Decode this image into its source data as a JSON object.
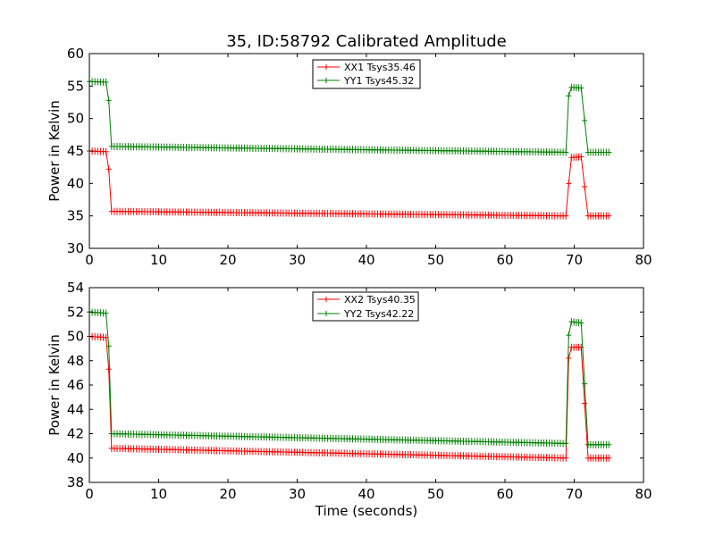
{
  "title": "35, ID:58792 Calibrated Amplitude",
  "chart_data": [
    {
      "type": "line",
      "ylabel": "Power in Kelvin",
      "xlabel": "",
      "xlim": [
        0,
        80
      ],
      "ylim": [
        30,
        60
      ],
      "xticks": [
        0,
        10,
        20,
        30,
        40,
        50,
        60,
        70,
        80
      ],
      "yticks": [
        30,
        35,
        40,
        45,
        50,
        55,
        60
      ],
      "legend_position": "top-center",
      "marker": "plus",
      "series": [
        {
          "name": "XX1 Tsys35.46",
          "color": "#ff0000",
          "segments": [
            {
              "x0": 0.0,
              "x1": 2.4,
              "y0": 45.0,
              "y1": 44.9
            },
            {
              "x0": 3.2,
              "x1": 68.8,
              "y0": 35.7,
              "y1": 35.0
            },
            {
              "x0": 69.6,
              "x1": 71.0,
              "y0": 44.0,
              "y1": 44.1
            },
            {
              "x0": 72.0,
              "x1": 75.0,
              "y0": 35.0,
              "y1": 35.0
            }
          ],
          "transitions": [
            {
              "x": 2.8,
              "y": 42.2
            },
            {
              "x": 69.2,
              "y": 40.0
            },
            {
              "x": 71.5,
              "y": 39.5
            }
          ]
        },
        {
          "name": "YY1 Tsys45.32",
          "color": "#008000",
          "segments": [
            {
              "x0": 0.0,
              "x1": 2.4,
              "y0": 55.7,
              "y1": 55.6
            },
            {
              "x0": 3.2,
              "x1": 68.8,
              "y0": 45.7,
              "y1": 44.8
            },
            {
              "x0": 69.6,
              "x1": 71.0,
              "y0": 54.8,
              "y1": 54.7
            },
            {
              "x0": 72.0,
              "x1": 75.0,
              "y0": 44.8,
              "y1": 44.8
            }
          ],
          "transitions": [
            {
              "x": 2.8,
              "y": 52.8
            },
            {
              "x": 69.2,
              "y": 53.5
            },
            {
              "x": 71.5,
              "y": 49.7
            }
          ]
        }
      ]
    },
    {
      "type": "line",
      "ylabel": "Power in Kelvin",
      "xlabel": "Time (seconds)",
      "xlim": [
        0,
        80
      ],
      "ylim": [
        38,
        54
      ],
      "xticks": [
        0,
        10,
        20,
        30,
        40,
        50,
        60,
        70,
        80
      ],
      "yticks": [
        38,
        40,
        42,
        44,
        46,
        48,
        50,
        52,
        54
      ],
      "legend_position": "top-center",
      "marker": "plus",
      "series": [
        {
          "name": "XX2 Tsys40.35",
          "color": "#ff0000",
          "segments": [
            {
              "x0": 0.0,
              "x1": 2.4,
              "y0": 50.0,
              "y1": 49.9
            },
            {
              "x0": 3.2,
              "x1": 68.8,
              "y0": 40.8,
              "y1": 40.0
            },
            {
              "x0": 69.6,
              "x1": 71.0,
              "y0": 49.1,
              "y1": 49.1
            },
            {
              "x0": 72.0,
              "x1": 75.0,
              "y0": 40.0,
              "y1": 40.0
            }
          ],
          "transitions": [
            {
              "x": 2.8,
              "y": 47.3
            },
            {
              "x": 69.2,
              "y": 48.2
            },
            {
              "x": 71.5,
              "y": 44.5
            }
          ]
        },
        {
          "name": "YY2 Tsys42.22",
          "color": "#008000",
          "segments": [
            {
              "x0": 0.0,
              "x1": 2.4,
              "y0": 52.0,
              "y1": 51.9
            },
            {
              "x0": 3.2,
              "x1": 68.8,
              "y0": 42.0,
              "y1": 41.2
            },
            {
              "x0": 69.6,
              "x1": 71.0,
              "y0": 51.2,
              "y1": 51.1
            },
            {
              "x0": 72.0,
              "x1": 75.0,
              "y0": 41.1,
              "y1": 41.1
            }
          ],
          "transitions": [
            {
              "x": 2.8,
              "y": 49.2
            },
            {
              "x": 69.2,
              "y": 50.1
            },
            {
              "x": 71.5,
              "y": 46.1
            }
          ]
        }
      ]
    }
  ]
}
